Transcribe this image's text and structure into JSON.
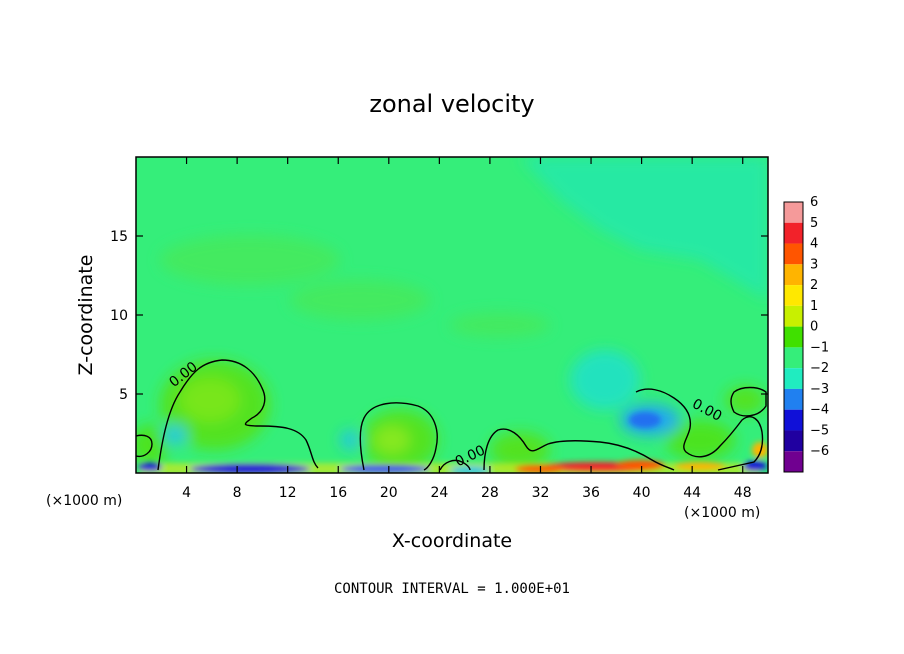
{
  "chart_data": {
    "type": "heatmap",
    "title": "zonal velocity",
    "xlabel": "X-coordinate",
    "ylabel": "Z-coordinate",
    "x_unit_label": "(×1000 m)",
    "x_unit_label_right": "(×1000 m)",
    "xlim": [
      0,
      50
    ],
    "ylim": [
      0,
      20
    ],
    "x_ticks": [
      4,
      8,
      12,
      16,
      20,
      24,
      28,
      32,
      36,
      40,
      44,
      48
    ],
    "y_ticks": [
      5,
      10,
      15
    ],
    "colorbar": {
      "levels": [
        6,
        5,
        4,
        3,
        2,
        1,
        0,
        -1,
        -2,
        -3,
        -4,
        -5,
        -6
      ],
      "colors": [
        "#f59a9a",
        "#f2222a",
        "#ff5500",
        "#ffb400",
        "#ffe800",
        "#c8f000",
        "#40e000",
        "#35ee7a",
        "#20ecc0",
        "#2080f0",
        "#1010d8",
        "#2000a0",
        "#700090"
      ]
    },
    "contour_labels": [
      "0.00",
      "0.00",
      "0.00"
    ],
    "footer": "CONTOUR INTERVAL = 1.000E+01"
  }
}
